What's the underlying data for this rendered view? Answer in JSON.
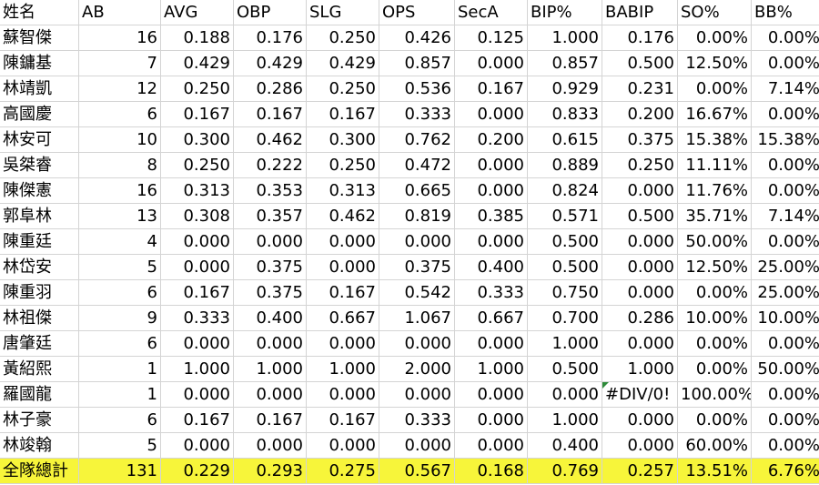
{
  "table": {
    "header": [
      "姓名",
      "AB",
      "AVG",
      "OBP",
      "SLG",
      "OPS",
      "SecA",
      "BIP%",
      "BABIP",
      "SO%",
      "BB%"
    ],
    "rows": [
      [
        "蘇智傑",
        "16",
        "0.188",
        "0.176",
        "0.250",
        "0.426",
        "0.125",
        "1.000",
        "0.176",
        "0.00%",
        "0.00%"
      ],
      [
        "陳鏞基",
        "7",
        "0.429",
        "0.429",
        "0.429",
        "0.857",
        "0.000",
        "0.857",
        "0.500",
        "12.50%",
        "0.00%"
      ],
      [
        "林靖凱",
        "12",
        "0.250",
        "0.286",
        "0.250",
        "0.536",
        "0.167",
        "0.929",
        "0.231",
        "0.00%",
        "7.14%"
      ],
      [
        "高國慶",
        "6",
        "0.167",
        "0.167",
        "0.167",
        "0.333",
        "0.000",
        "0.833",
        "0.200",
        "16.67%",
        "0.00%"
      ],
      [
        "林安可",
        "10",
        "0.300",
        "0.462",
        "0.300",
        "0.762",
        "0.200",
        "0.615",
        "0.375",
        "15.38%",
        "15.38%"
      ],
      [
        "吳桀睿",
        "8",
        "0.250",
        "0.222",
        "0.250",
        "0.472",
        "0.000",
        "0.889",
        "0.250",
        "11.11%",
        "0.00%"
      ],
      [
        "陳傑憲",
        "16",
        "0.313",
        "0.353",
        "0.313",
        "0.665",
        "0.000",
        "0.824",
        "0.000",
        "11.76%",
        "0.00%"
      ],
      [
        "郭阜林",
        "13",
        "0.308",
        "0.357",
        "0.462",
        "0.819",
        "0.385",
        "0.571",
        "0.500",
        "35.71%",
        "7.14%"
      ],
      [
        "陳重廷",
        "4",
        "0.000",
        "0.000",
        "0.000",
        "0.000",
        "0.000",
        "0.500",
        "0.000",
        "50.00%",
        "0.00%"
      ],
      [
        "林岱安",
        "5",
        "0.000",
        "0.375",
        "0.000",
        "0.375",
        "0.400",
        "0.500",
        "0.000",
        "12.50%",
        "25.00%"
      ],
      [
        "陳重羽",
        "6",
        "0.167",
        "0.375",
        "0.167",
        "0.542",
        "0.333",
        "0.750",
        "0.000",
        "0.00%",
        "25.00%"
      ],
      [
        "林祖傑",
        "9",
        "0.333",
        "0.400",
        "0.667",
        "1.067",
        "0.667",
        "0.700",
        "0.286",
        "10.00%",
        "10.00%"
      ],
      [
        "唐肇廷",
        "6",
        "0.000",
        "0.000",
        "0.000",
        "0.000",
        "0.000",
        "1.000",
        "0.000",
        "0.00%",
        "0.00%"
      ],
      [
        "黃紹熙",
        "1",
        "1.000",
        "1.000",
        "1.000",
        "2.000",
        "1.000",
        "0.500",
        "1.000",
        "0.00%",
        "50.00%"
      ],
      [
        "羅國龍",
        "1",
        "0.000",
        "0.000",
        "0.000",
        "0.000",
        "0.000",
        "0.000",
        "#DIV/0!",
        "100.00%",
        "0.00%"
      ],
      [
        "林子豪",
        "6",
        "0.167",
        "0.167",
        "0.167",
        "0.333",
        "0.000",
        "1.000",
        "0.000",
        "0.00%",
        "0.00%"
      ],
      [
        "林竣翰",
        "5",
        "0.000",
        "0.000",
        "0.000",
        "0.000",
        "0.000",
        "0.400",
        "0.000",
        "60.00%",
        "0.00%"
      ],
      [
        "全隊總計",
        "131",
        "0.229",
        "0.293",
        "0.275",
        "0.567",
        "0.168",
        "0.769",
        "0.257",
        "13.51%",
        "6.76%"
      ]
    ]
  }
}
